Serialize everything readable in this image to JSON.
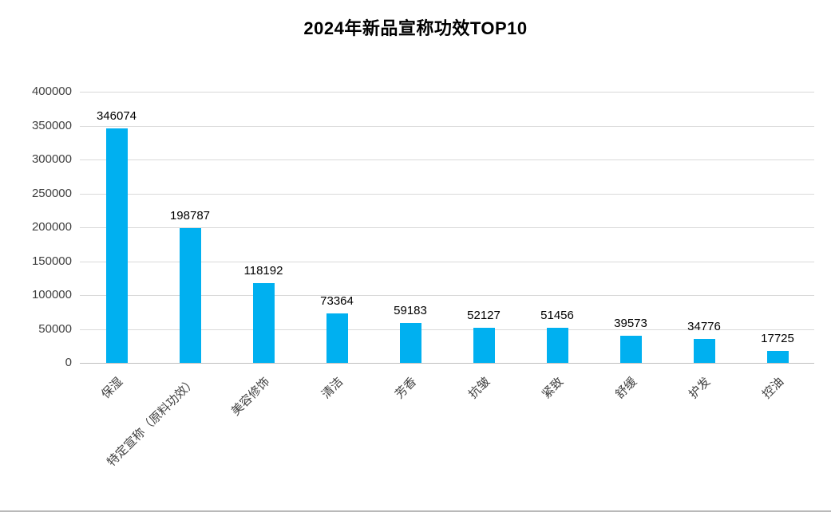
{
  "title": "2024年新品宣称功效TOP10",
  "colors": {
    "bar": "#00B0F0",
    "gridline": "#D9D9D9",
    "axis_line": "#BFBFBF",
    "title_text": "#000000",
    "tick_text": "#3F3F3F"
  },
  "chart_data": {
    "type": "bar",
    "title": "2024年新品宣称功效TOP10",
    "categories": [
      "保湿",
      "特定宣称（原料功效）",
      "美容修饰",
      "清洁",
      "芳香",
      "抗皱",
      "紧致",
      "舒缓",
      "护发",
      "控油"
    ],
    "values": [
      346074,
      198787,
      118192,
      73364,
      59183,
      52127,
      51456,
      39573,
      34776,
      17725
    ],
    "xlabel": "",
    "ylabel": "",
    "ylim": [
      0,
      400000
    ],
    "yticks": [
      0,
      50000,
      100000,
      150000,
      200000,
      250000,
      300000,
      350000,
      400000
    ],
    "grid": true,
    "legend": false,
    "bar_color": "#00B0F0",
    "data_labels": true
  }
}
